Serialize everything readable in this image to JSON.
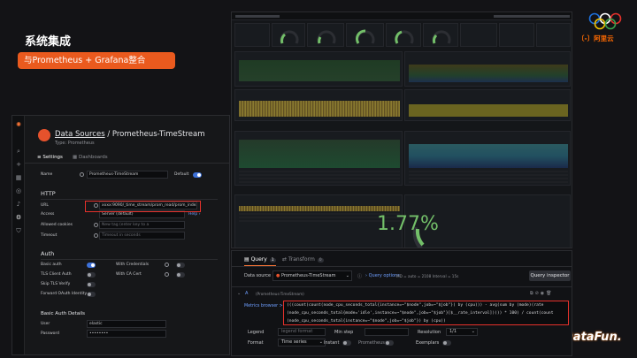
{
  "slide": {
    "title": "系统集成",
    "badge": "与Prometheus + Grafana整合",
    "aliyun_logo": "〔-〕阿里云",
    "datafun_logo": "DataFun."
  },
  "datasource_window": {
    "title_link": "Data Sources",
    "title_rest": " / Prometheus-TimeStream",
    "type": "Type: Prometheus",
    "tabs": [
      "Settings",
      "Dashboards"
    ],
    "name_label": "Name",
    "name_value": "Prometheus-TimeStream",
    "default_label": "Default",
    "default_on": true,
    "http_section": "HTTP",
    "url_label": "URL",
    "url_value": "xxxx:9090/_time_stream/prom_read/prom_index",
    "access_label": "Access",
    "access_value": "Server (default)",
    "access_help": "Help ›",
    "allowed_cookies_label": "Allowed cookies",
    "allowed_cookies_placeholder": "New tag (enter key to a",
    "timeout_label": "Timeout",
    "timeout_placeholder": "Timeout in seconds",
    "auth_section": "Auth",
    "auth_left": [
      "Basic auth",
      "TLS Client Auth",
      "Skip TLS Verify",
      "Forward OAuth Identity"
    ],
    "auth_left_on": [
      true,
      false,
      false,
      false
    ],
    "auth_right": [
      "With Credentials",
      "With CA Cert"
    ],
    "basic_auth_section": "Basic Auth Details",
    "user_label": "User",
    "user_value": "elastic",
    "password_label": "Password",
    "password_value": "••••••••"
  },
  "dashboard_window": {
    "big_value": "1.77%"
  },
  "query_window": {
    "tabs": [
      "Query",
      "Transform"
    ],
    "query_count": "1",
    "transform_count": "0",
    "datasource_label": "Data source",
    "datasource_value": "Prometheus-TimeStream",
    "query_options": "Query options",
    "query_meta": "MD = auto = 2108   Interval = 15s",
    "inspector_button": "Query inspector",
    "query_letter": "A",
    "query_ds_hint": "(Prometheus-TimeStream)",
    "metrics_browser": "Metrics browser >",
    "code_lines": [
      "(((count(count(node_cpu_seconds_total{instance=~\"$node\",job=~\"$job\"}) by (cpu))) - avg(sum by (mode)(rate",
      "(node_cpu_seconds_total{mode='idle',instance=~\"$node\",job=~\"$job\"}[$__rate_interval])))) * 100) / count(count",
      "(node_cpu_seconds_total{instance=~\"$node\",job=~\"$job\"}) by (cpu))"
    ],
    "legend_label": "Legend",
    "legend_placeholder": "legend format",
    "min_step_label": "Min step",
    "resolution_label": "Resolution",
    "resolution_value": "1/1",
    "format_label": "Format",
    "format_value": "Time series",
    "instant_label": "Instant",
    "prometheus_label": "Prometheus",
    "exemplars_label": "Exemplars"
  },
  "colors": {
    "accent_orange": "#ea5a1e",
    "highlight_red": "#e5312b",
    "grafana_green": "#73bf69",
    "grafana_blue": "#3d71d9"
  }
}
